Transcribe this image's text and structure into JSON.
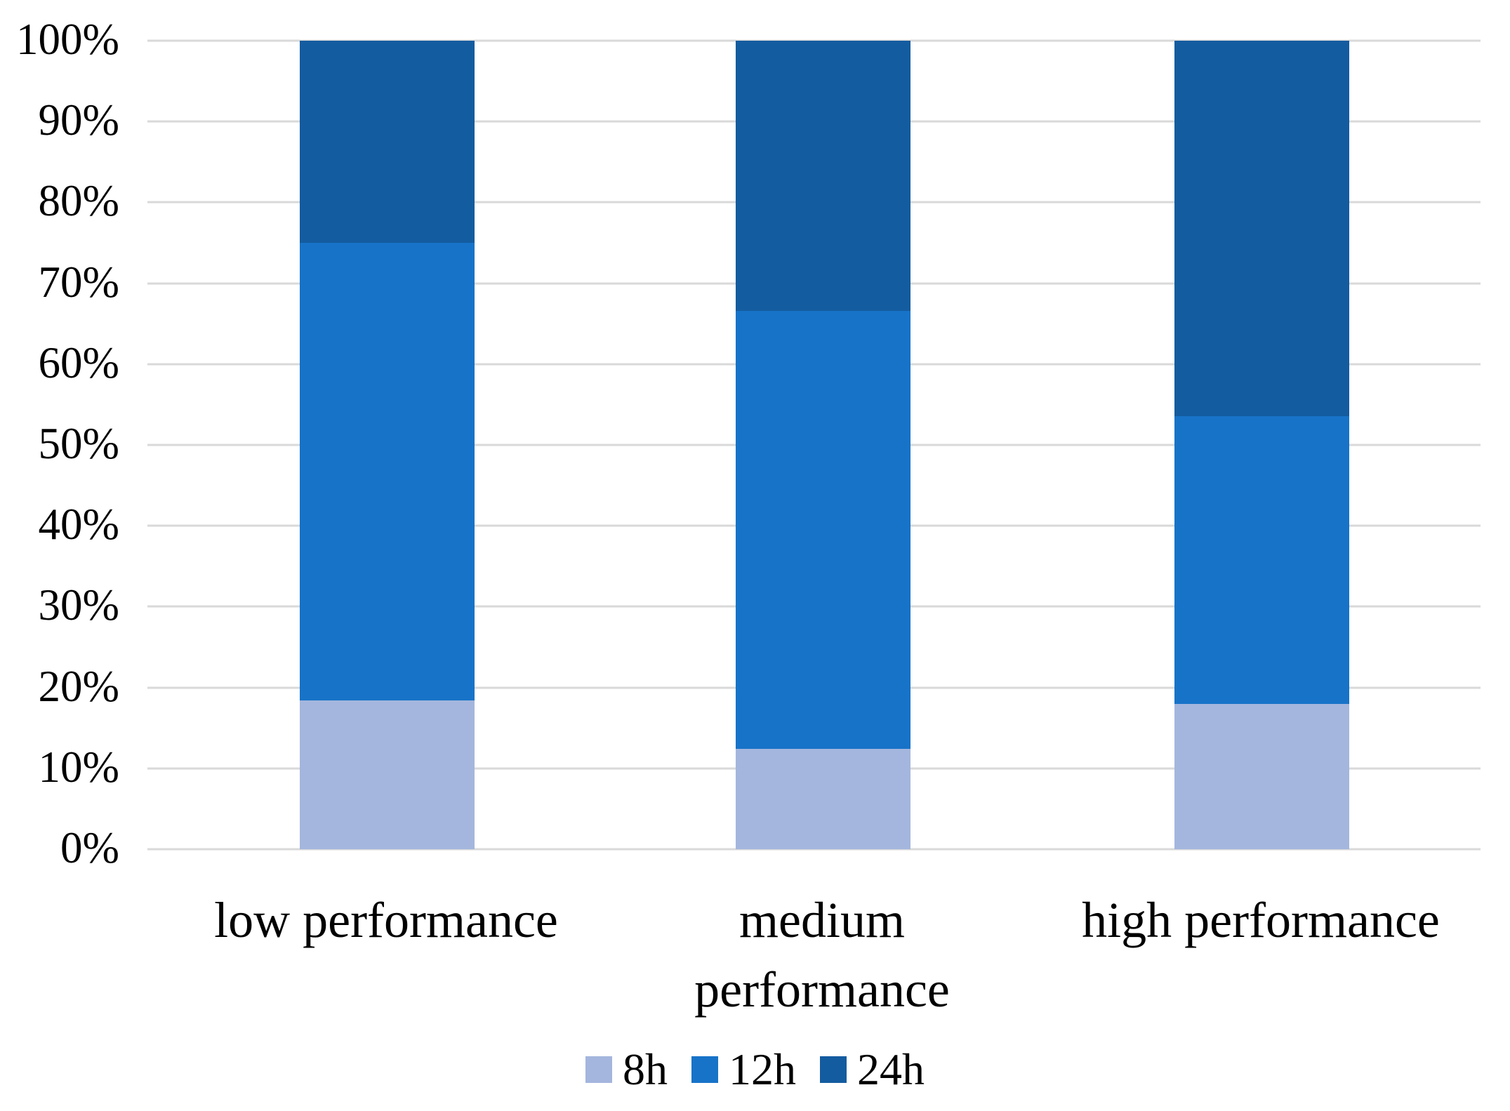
{
  "chart_data": {
    "type": "bar",
    "subtype": "stacked-100-percent-column",
    "title": "",
    "xlabel": "",
    "ylabel": "",
    "categories": [
      "low performance",
      "medium performance",
      "high performance"
    ],
    "series": [
      {
        "name": "8h",
        "color": "#a4b6dd",
        "values": [
          18.4,
          12.4,
          18.0
        ]
      },
      {
        "name": "12h",
        "color": "#1773c8",
        "values": [
          56.6,
          54.2,
          35.6
        ]
      },
      {
        "name": "24h",
        "color": "#145ca0",
        "values": [
          25.0,
          33.4,
          46.4
        ]
      }
    ],
    "ylim": [
      0,
      100
    ],
    "yticks": [
      "100%",
      "90%",
      "80%",
      "70%",
      "60%",
      "50%",
      "40%",
      "30%",
      "20%",
      "10%",
      "0%"
    ],
    "grid": true,
    "gridline_color": "#d9d9d9",
    "legend_position": "bottom",
    "background_color": "#ffffff",
    "text_color": "#000000"
  }
}
